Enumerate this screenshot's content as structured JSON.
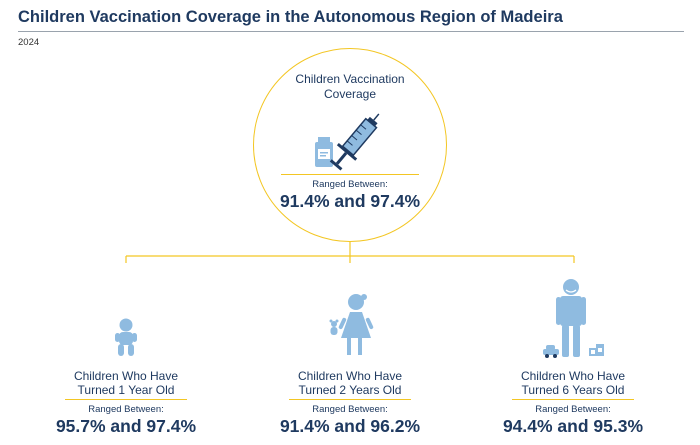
{
  "header": {
    "title": "Children Vaccination Coverage in the Autonomous Region of Madeira",
    "year": "2024"
  },
  "main": {
    "title_line1": "Children Vaccination",
    "title_line2": "Coverage",
    "ranged_label": "Ranged Between:",
    "range": "91.4% and 97.4%",
    "icon": "vaccine-vial-and-syringe-icon"
  },
  "groups": [
    {
      "label_line1": "Children Who Have",
      "label_line2": "Turned 1 Year Old",
      "ranged_label": "Ranged Between:",
      "range": "95.7% and 97.4%",
      "icon": "baby-icon"
    },
    {
      "label_line1": "Children Who Have",
      "label_line2": "Turned 2 Years Old",
      "ranged_label": "Ranged Between:",
      "range": "91.4% and 96.2%",
      "icon": "toddler-girl-with-teddy-icon"
    },
    {
      "label_line1": "Children Who Have",
      "label_line2": "Turned 6 Years Old",
      "ranged_label": "Ranged Between:",
      "range": "94.4% and 95.3%",
      "icon": "child-with-toys-icon"
    }
  ],
  "colors": {
    "accent_yellow": "#f3c623",
    "icon_blue": "#8fbbe0",
    "icon_dark": "#1f3a60",
    "text_navy": "#1f3a60"
  }
}
